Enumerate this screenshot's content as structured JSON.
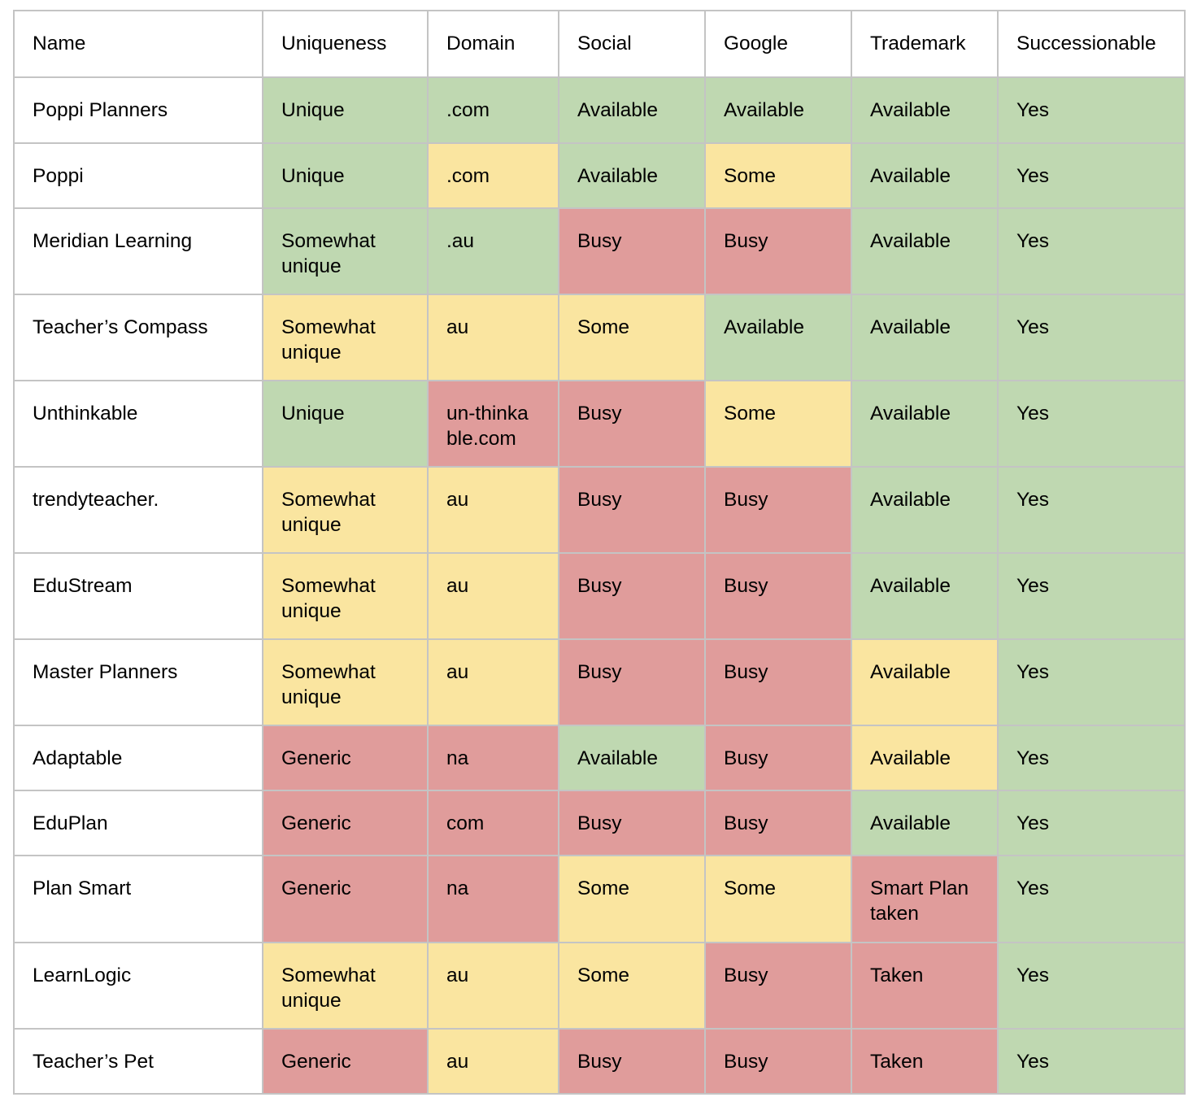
{
  "table": {
    "headers": [
      "Name",
      "Uniqueness",
      "Domain",
      "Social",
      "Google",
      "Trademark",
      "Successionable"
    ],
    "status_colors": {
      "white": "#ffffff",
      "green": "#bfd8b1",
      "yellow": "#fae5a0",
      "red": "#e09c9b"
    },
    "rows": [
      {
        "cells": [
          "Poppi Planners",
          "Unique",
          ".com",
          "Available",
          "Available",
          "Available",
          "Yes"
        ],
        "colors": [
          "white",
          "green",
          "green",
          "green",
          "green",
          "green",
          "green"
        ]
      },
      {
        "cells": [
          "Poppi",
          "Unique",
          ".com",
          "Available",
          "Some",
          "Available",
          "Yes"
        ],
        "colors": [
          "white",
          "green",
          "yellow",
          "green",
          "yellow",
          "green",
          "green"
        ]
      },
      {
        "cells": [
          "Meridian Learning",
          "Somewhat\nunique",
          ".au",
          "Busy",
          "Busy",
          "Available",
          "Yes"
        ],
        "colors": [
          "white",
          "green",
          "green",
          "red",
          "red",
          "green",
          "green"
        ]
      },
      {
        "cells": [
          "Teacher’s Compass",
          "Somewhat\nunique",
          "au",
          "Some",
          "Available",
          "Available",
          "Yes"
        ],
        "colors": [
          "white",
          "yellow",
          "yellow",
          "yellow",
          "green",
          "green",
          "green"
        ]
      },
      {
        "cells": [
          "Unthinkable",
          "Unique",
          "un-thinka\nble.com",
          "Busy",
          "Some",
          "Available",
          "Yes"
        ],
        "colors": [
          "white",
          "green",
          "red",
          "red",
          "yellow",
          "green",
          "green"
        ]
      },
      {
        "cells": [
          "trendyteacher.",
          "Somewhat\nunique",
          "au",
          "Busy",
          "Busy",
          "Available",
          "Yes"
        ],
        "colors": [
          "white",
          "yellow",
          "yellow",
          "red",
          "red",
          "green",
          "green"
        ]
      },
      {
        "cells": [
          "EduStream",
          "Somewhat\nunique",
          "au",
          "Busy",
          "Busy",
          "Available",
          "Yes"
        ],
        "colors": [
          "white",
          "yellow",
          "yellow",
          "red",
          "red",
          "green",
          "green"
        ]
      },
      {
        "cells": [
          "Master Planners",
          "Somewhat\nunique",
          "au",
          "Busy",
          "Busy",
          "Available",
          "Yes"
        ],
        "colors": [
          "white",
          "yellow",
          "yellow",
          "red",
          "red",
          "yellow",
          "green"
        ]
      },
      {
        "cells": [
          "Adaptable",
          "Generic",
          "na",
          "Available",
          "Busy",
          "Available",
          "Yes"
        ],
        "colors": [
          "white",
          "red",
          "red",
          "green",
          "red",
          "yellow",
          "green"
        ]
      },
      {
        "cells": [
          "EduPlan",
          "Generic",
          "com",
          "Busy",
          "Busy",
          "Available",
          "Yes"
        ],
        "colors": [
          "white",
          "red",
          "red",
          "red",
          "red",
          "green",
          "green"
        ]
      },
      {
        "cells": [
          "Plan Smart",
          "Generic",
          "na",
          "Some",
          "Some",
          "Smart Plan\ntaken",
          "Yes"
        ],
        "colors": [
          "white",
          "red",
          "red",
          "yellow",
          "yellow",
          "red",
          "green"
        ]
      },
      {
        "cells": [
          "LearnLogic",
          "Somewhat\nunique",
          "au",
          "Some",
          "Busy",
          "Taken",
          "Yes"
        ],
        "colors": [
          "white",
          "yellow",
          "yellow",
          "yellow",
          "red",
          "red",
          "green"
        ]
      },
      {
        "cells": [
          "Teacher’s Pet",
          "Generic",
          "au",
          "Busy",
          "Busy",
          "Taken",
          "Yes"
        ],
        "colors": [
          "white",
          "red",
          "yellow",
          "red",
          "red",
          "red",
          "green"
        ]
      }
    ]
  }
}
